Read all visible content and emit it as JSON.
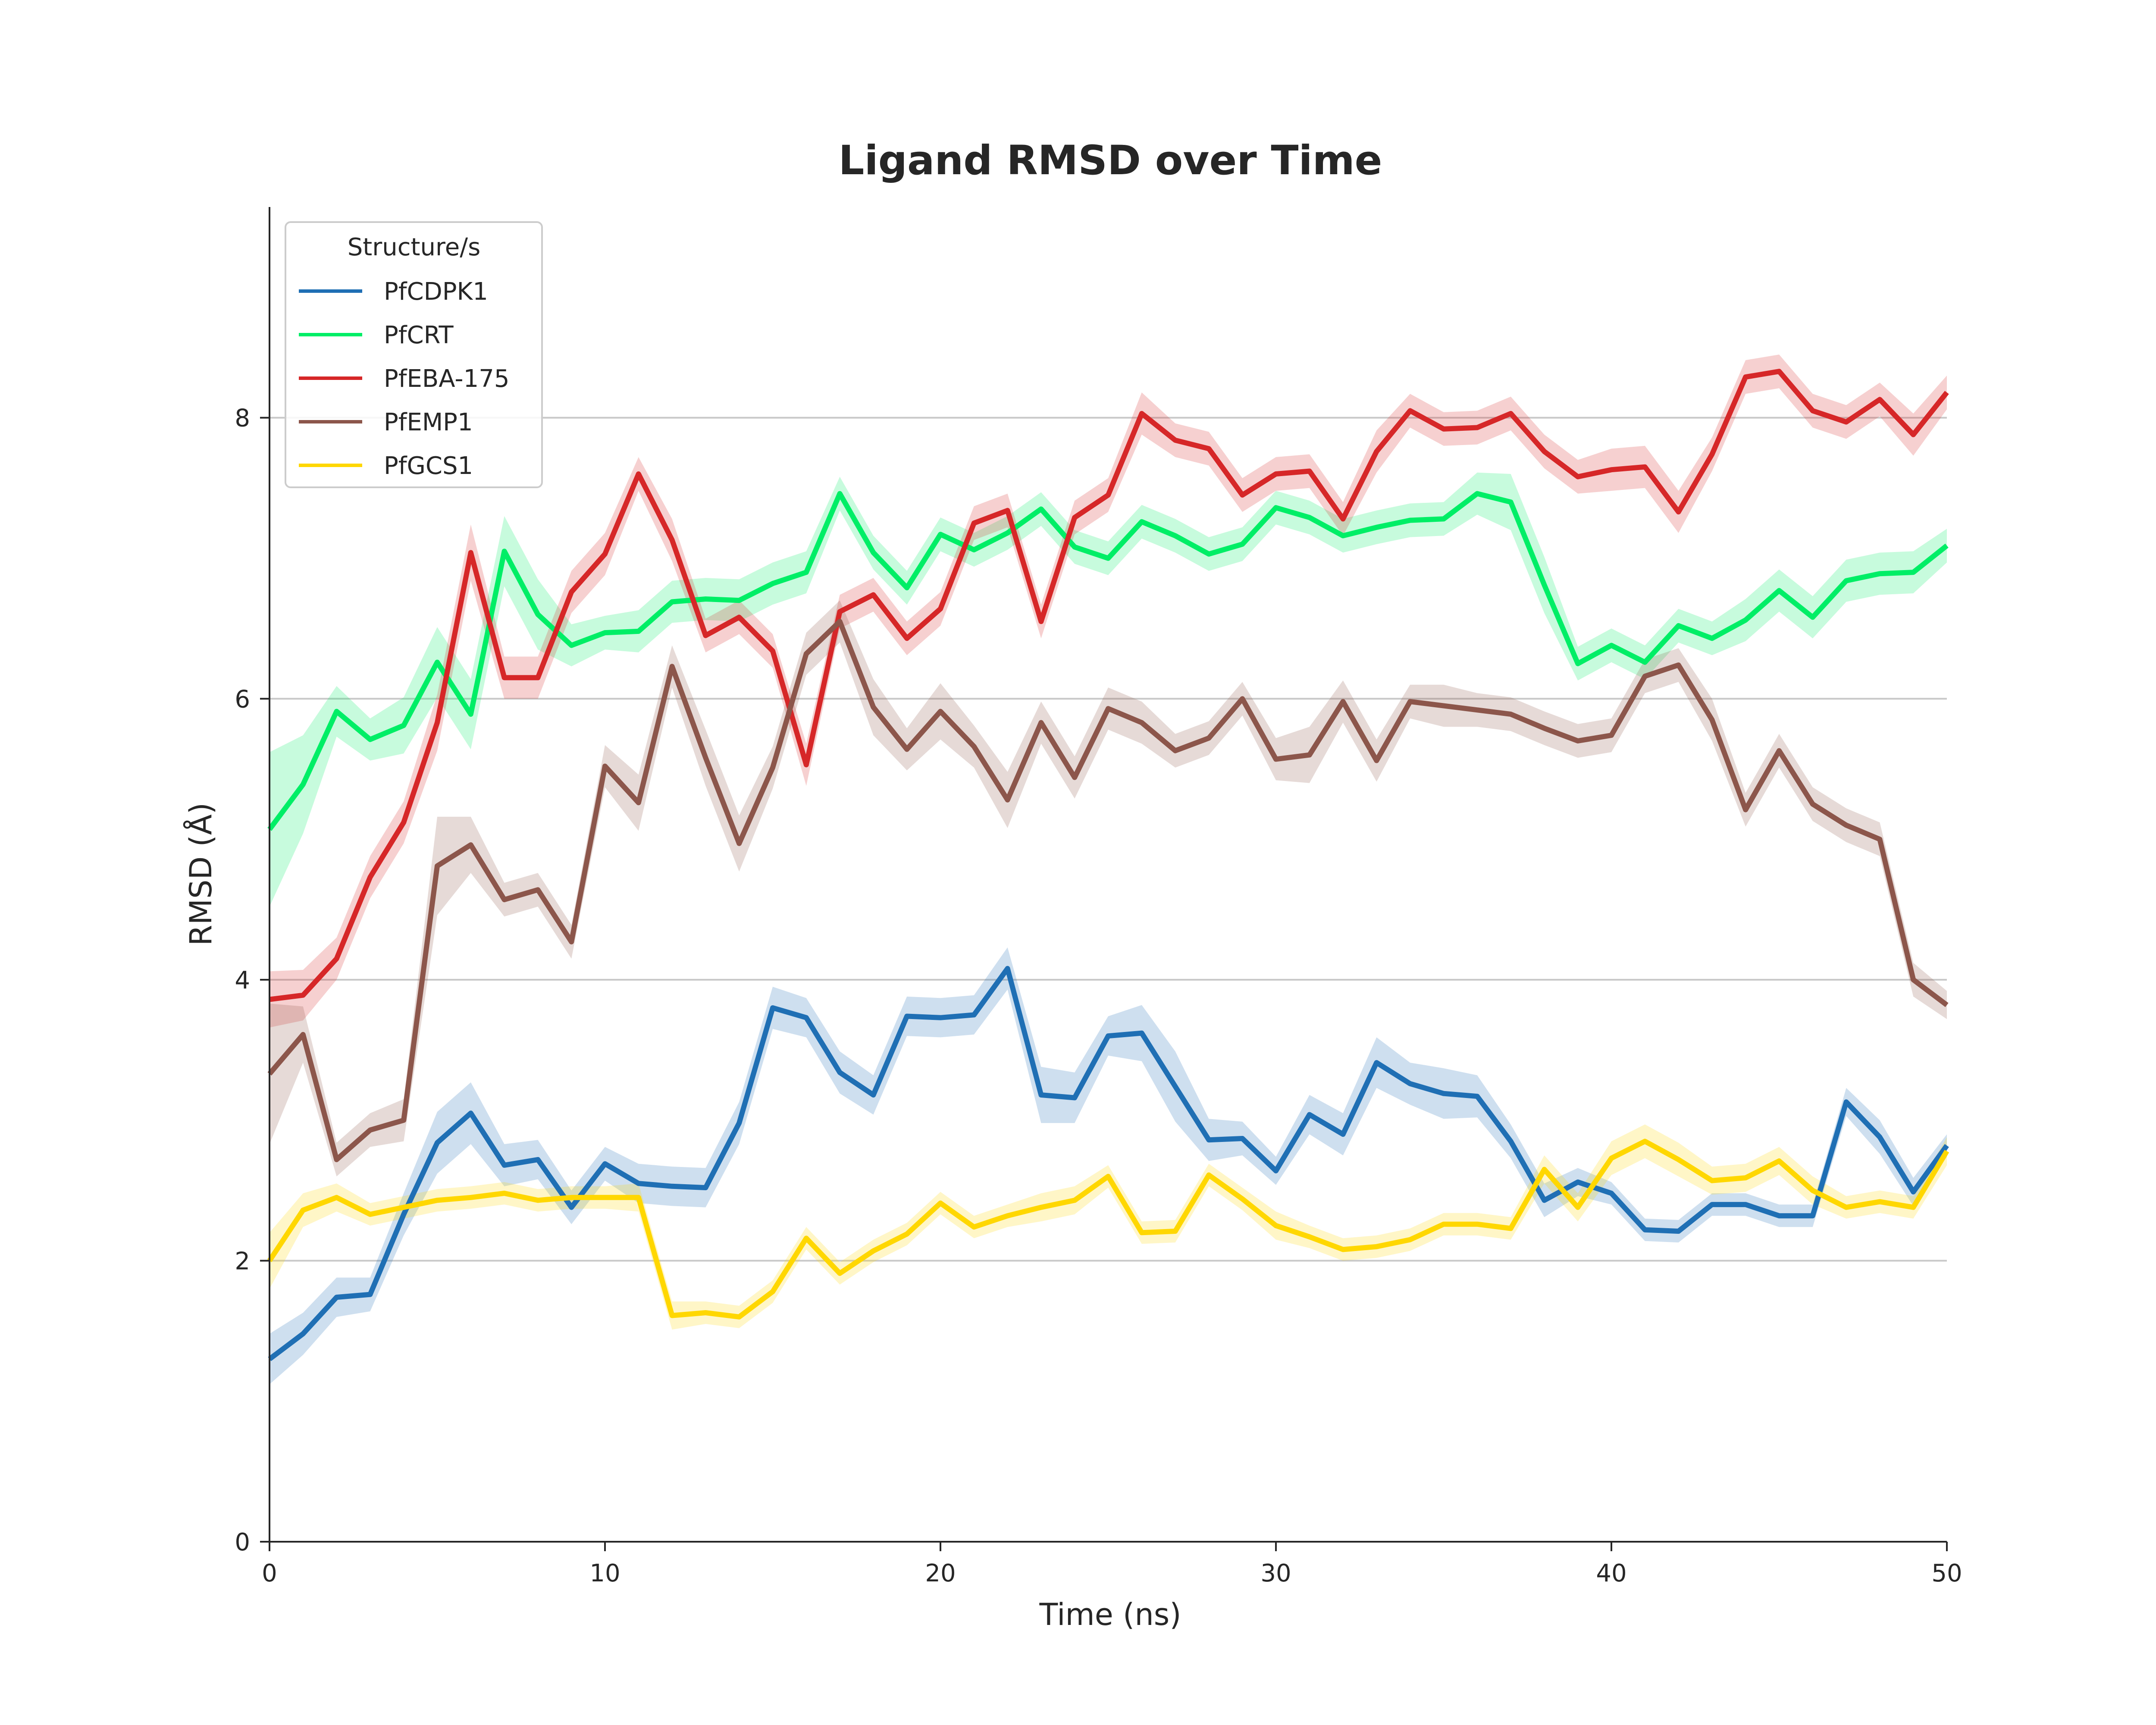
{
  "chart_data": {
    "type": "line",
    "title": "Ligand RMSD over Time",
    "xlabel": "Time (ns)",
    "ylabel": "RMSD (Å)",
    "xlim": [
      0,
      50
    ],
    "ylim": [
      0,
      9.5
    ],
    "xticks": [
      0,
      10,
      20,
      30,
      40,
      50
    ],
    "yticks": [
      0,
      2,
      4,
      6,
      8
    ],
    "grid": "horizontal",
    "legend": {
      "title": "Structure/s",
      "placement": "top-left"
    },
    "x": [
      0,
      1,
      2,
      3,
      4,
      5,
      6,
      7,
      8,
      9,
      10,
      11,
      12,
      13,
      14,
      15,
      16,
      17,
      18,
      19,
      20,
      21,
      22,
      23,
      24,
      25,
      26,
      27,
      28,
      29,
      30,
      31,
      32,
      33,
      34,
      35,
      36,
      37,
      38,
      39,
      40,
      41,
      42,
      43,
      44,
      45,
      46,
      47,
      48,
      49,
      50
    ],
    "series": [
      {
        "name": "PfCDPK1",
        "color": "#1f6fb4",
        "values": [
          1.3,
          1.48,
          1.74,
          1.76,
          2.33,
          2.84,
          3.05,
          2.68,
          2.72,
          2.38,
          2.69,
          2.55,
          2.53,
          2.52,
          2.98,
          3.8,
          3.73,
          3.34,
          3.18,
          3.74,
          3.73,
          3.75,
          4.08,
          3.18,
          3.16,
          3.6,
          3.62,
          3.24,
          2.86,
          2.87,
          2.64,
          3.04,
          2.9,
          3.41,
          3.26,
          3.19,
          3.17,
          2.85,
          2.43,
          2.56,
          2.48,
          2.22,
          2.21,
          2.4,
          2.4,
          2.32,
          2.32,
          3.13,
          2.88,
          2.49,
          2.82
        ],
        "band": [
          0.18,
          0.15,
          0.14,
          0.12,
          0.15,
          0.22,
          0.22,
          0.15,
          0.14,
          0.12,
          0.12,
          0.14,
          0.14,
          0.14,
          0.15,
          0.15,
          0.14,
          0.15,
          0.14,
          0.14,
          0.14,
          0.14,
          0.15,
          0.2,
          0.18,
          0.14,
          0.2,
          0.25,
          0.15,
          0.12,
          0.1,
          0.14,
          0.15,
          0.18,
          0.15,
          0.18,
          0.15,
          0.12,
          0.12,
          0.1,
          0.08,
          0.08,
          0.08,
          0.08,
          0.08,
          0.08,
          0.08,
          0.1,
          0.12,
          0.1,
          0.08
        ]
      },
      {
        "name": "PfCRT",
        "color": "#00ee66",
        "values": [
          5.07,
          5.39,
          5.91,
          5.71,
          5.81,
          6.26,
          5.89,
          7.05,
          6.6,
          6.38,
          6.47,
          6.48,
          6.69,
          6.71,
          6.7,
          6.82,
          6.9,
          7.46,
          7.04,
          6.79,
          7.17,
          7.06,
          7.18,
          7.35,
          7.08,
          7.0,
          7.26,
          7.16,
          7.03,
          7.1,
          7.36,
          7.29,
          7.16,
          7.22,
          7.27,
          7.28,
          7.46,
          7.4,
          6.81,
          6.25,
          6.38,
          6.26,
          6.52,
          6.43,
          6.56,
          6.77,
          6.58,
          6.84,
          6.89,
          6.9,
          7.09
        ],
        "band": [
          0.55,
          0.35,
          0.18,
          0.15,
          0.2,
          0.25,
          0.25,
          0.25,
          0.25,
          0.15,
          0.12,
          0.15,
          0.15,
          0.15,
          0.15,
          0.15,
          0.15,
          0.12,
          0.12,
          0.12,
          0.12,
          0.12,
          0.12,
          0.12,
          0.12,
          0.12,
          0.12,
          0.12,
          0.12,
          0.12,
          0.12,
          0.12,
          0.12,
          0.12,
          0.12,
          0.12,
          0.15,
          0.2,
          0.2,
          0.12,
          0.12,
          0.12,
          0.12,
          0.12,
          0.15,
          0.15,
          0.15,
          0.15,
          0.15,
          0.15,
          0.12
        ]
      },
      {
        "name": "PfEBA-175",
        "color": "#d62728",
        "values": [
          3.86,
          3.89,
          4.15,
          4.73,
          5.12,
          5.83,
          7.04,
          6.15,
          6.15,
          6.76,
          7.03,
          7.6,
          7.13,
          6.45,
          6.58,
          6.34,
          5.53,
          6.62,
          6.74,
          6.43,
          6.64,
          7.25,
          7.34,
          6.55,
          7.29,
          7.45,
          8.03,
          7.84,
          7.78,
          7.45,
          7.6,
          7.62,
          7.28,
          7.76,
          8.05,
          7.92,
          7.93,
          8.03,
          7.76,
          7.58,
          7.63,
          7.65,
          7.33,
          7.74,
          8.29,
          8.33,
          8.05,
          7.97,
          8.13,
          7.88,
          8.18
        ],
        "band": [
          0.2,
          0.18,
          0.15,
          0.15,
          0.15,
          0.2,
          0.2,
          0.15,
          0.15,
          0.15,
          0.15,
          0.12,
          0.15,
          0.12,
          0.12,
          0.12,
          0.15,
          0.12,
          0.12,
          0.12,
          0.12,
          0.12,
          0.12,
          0.12,
          0.12,
          0.12,
          0.15,
          0.12,
          0.12,
          0.12,
          0.12,
          0.12,
          0.12,
          0.15,
          0.12,
          0.12,
          0.12,
          0.12,
          0.12,
          0.12,
          0.15,
          0.15,
          0.15,
          0.12,
          0.12,
          0.12,
          0.12,
          0.12,
          0.12,
          0.15,
          0.12
        ]
      },
      {
        "name": "PfEMP1",
        "color": "#8c564b",
        "values": [
          3.33,
          3.61,
          2.72,
          2.93,
          3.0,
          4.81,
          4.96,
          4.57,
          4.64,
          4.27,
          5.52,
          5.26,
          6.23,
          5.58,
          4.97,
          5.51,
          6.32,
          6.55,
          5.94,
          5.64,
          5.91,
          5.66,
          5.28,
          5.83,
          5.44,
          5.93,
          5.83,
          5.63,
          5.72,
          6.0,
          5.57,
          5.6,
          5.98,
          5.56,
          5.98,
          5.95,
          5.92,
          5.89,
          5.79,
          5.7,
          5.74,
          6.16,
          6.24,
          5.85,
          5.21,
          5.63,
          5.25,
          5.1,
          5.0,
          4.0,
          3.82
        ],
        "band": [
          0.5,
          0.2,
          0.12,
          0.12,
          0.15,
          0.35,
          0.2,
          0.12,
          0.12,
          0.12,
          0.15,
          0.2,
          0.15,
          0.2,
          0.2,
          0.15,
          0.15,
          0.15,
          0.2,
          0.15,
          0.2,
          0.15,
          0.2,
          0.15,
          0.15,
          0.15,
          0.15,
          0.12,
          0.12,
          0.12,
          0.15,
          0.2,
          0.15,
          0.15,
          0.12,
          0.15,
          0.12,
          0.12,
          0.12,
          0.12,
          0.12,
          0.12,
          0.12,
          0.15,
          0.12,
          0.12,
          0.12,
          0.12,
          0.12,
          0.12,
          0.1
        ]
      },
      {
        "name": "PfGCS1",
        "color": "#ffd700",
        "values": [
          2.0,
          2.36,
          2.45,
          2.33,
          2.38,
          2.43,
          2.45,
          2.48,
          2.43,
          2.45,
          2.45,
          2.45,
          1.61,
          1.63,
          1.6,
          1.78,
          2.16,
          1.91,
          2.07,
          2.19,
          2.41,
          2.24,
          2.32,
          2.38,
          2.43,
          2.6,
          2.2,
          2.21,
          2.61,
          2.44,
          2.25,
          2.17,
          2.08,
          2.1,
          2.15,
          2.26,
          2.26,
          2.23,
          2.65,
          2.38,
          2.73,
          2.85,
          2.72,
          2.57,
          2.59,
          2.71,
          2.5,
          2.38,
          2.42,
          2.38,
          2.78
        ],
        "band": [
          0.2,
          0.12,
          0.1,
          0.08,
          0.08,
          0.08,
          0.08,
          0.08,
          0.08,
          0.08,
          0.08,
          0.1,
          0.1,
          0.08,
          0.08,
          0.08,
          0.08,
          0.08,
          0.08,
          0.08,
          0.08,
          0.08,
          0.08,
          0.1,
          0.1,
          0.08,
          0.08,
          0.08,
          0.08,
          0.08,
          0.1,
          0.08,
          0.08,
          0.08,
          0.08,
          0.08,
          0.08,
          0.08,
          0.1,
          0.1,
          0.12,
          0.12,
          0.12,
          0.1,
          0.1,
          0.1,
          0.1,
          0.08,
          0.08,
          0.08,
          0.1
        ]
      }
    ]
  }
}
